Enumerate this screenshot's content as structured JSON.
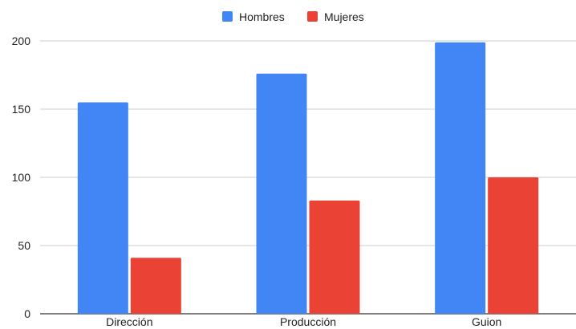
{
  "chart_data": {
    "type": "bar",
    "title": "",
    "xlabel": "",
    "ylabel": "",
    "categories": [
      "Dirección",
      "Producción",
      "Guion"
    ],
    "series": [
      {
        "name": "Hombres",
        "color": "#4285f4",
        "values": [
          155,
          176,
          199
        ]
      },
      {
        "name": "Mujeres",
        "color": "#ea4335",
        "values": [
          41,
          83,
          100
        ]
      }
    ],
    "ylim": [
      0,
      200
    ],
    "yticks": [
      0,
      50,
      100,
      150,
      200
    ],
    "grid": true,
    "legend_position": "top-center"
  }
}
